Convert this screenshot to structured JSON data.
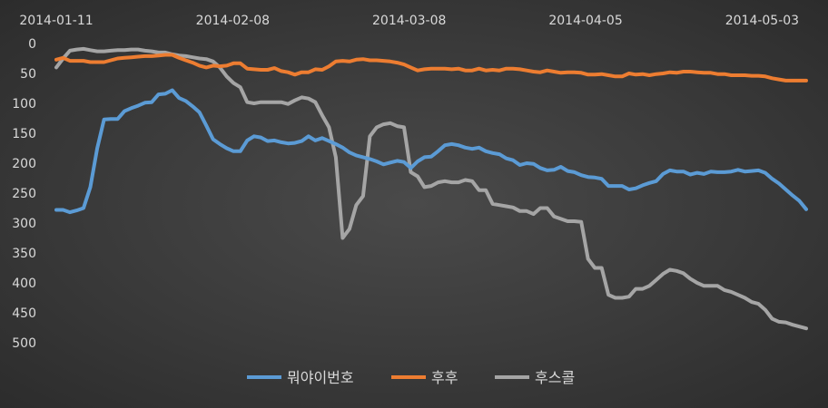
{
  "chart_data": {
    "type": "line",
    "x_tick_labels": [
      "2014-01-11",
      "2014-02-08",
      "2014-03-08",
      "2014-04-05",
      "2014-05-03"
    ],
    "y_tick_labels": [
      "0",
      "50",
      "100",
      "150",
      "200",
      "250",
      "300",
      "350",
      "400",
      "450",
      "500"
    ],
    "ylim": [
      0,
      500
    ],
    "y_axis_reversed": true,
    "grid": false,
    "legend_position": "bottom",
    "x_start": "2014-01-11",
    "x_end": "2014-05-10",
    "series": [
      {
        "name": "뭐야이번호",
        "color": "#5b9bd5",
        "values": [
          278,
          278,
          282,
          279,
          275,
          240,
          175,
          127,
          126,
          126,
          113,
          108,
          104,
          99,
          98,
          85,
          84,
          78,
          91,
          96,
          105,
          115,
          137,
          160,
          168,
          175,
          180,
          180,
          162,
          155,
          157,
          163,
          162,
          165,
          167,
          166,
          163,
          155,
          162,
          158,
          163,
          168,
          174,
          182,
          187,
          190,
          193,
          197,
          202,
          199,
          196,
          198,
          208,
          197,
          190,
          189,
          180,
          170,
          168,
          170,
          174,
          176,
          174,
          180,
          183,
          185,
          192,
          195,
          203,
          200,
          201,
          208,
          212,
          211,
          206,
          213,
          215,
          220,
          223,
          224,
          226,
          238,
          238,
          238,
          244,
          242,
          237,
          233,
          230,
          218,
          212,
          214,
          214,
          219,
          216,
          218,
          214,
          215,
          215,
          214,
          211,
          214,
          213,
          212,
          216,
          226,
          234,
          244,
          254,
          263,
          277
        ]
      },
      {
        "name": "후후",
        "color": "#ed7d31",
        "values": [
          27,
          24,
          29,
          29,
          29,
          31,
          31,
          31,
          28,
          25,
          24,
          23,
          22,
          21,
          21,
          20,
          19,
          19,
          24,
          28,
          32,
          37,
          40,
          37,
          38,
          37,
          33,
          33,
          42,
          43,
          44,
          44,
          41,
          46,
          48,
          52,
          48,
          48,
          43,
          44,
          38,
          30,
          29,
          30,
          27,
          26,
          28,
          28,
          29,
          30,
          32,
          35,
          40,
          45,
          43,
          42,
          42,
          42,
          43,
          42,
          45,
          45,
          42,
          45,
          44,
          45,
          42,
          42,
          43,
          45,
          47,
          48,
          45,
          47,
          49,
          48,
          48,
          49,
          52,
          52,
          51,
          53,
          55,
          55,
          50,
          52,
          51,
          53,
          51,
          50,
          48,
          49,
          47,
          47,
          48,
          49,
          49,
          51,
          51,
          53,
          53,
          53,
          54,
          54,
          55,
          58,
          60,
          62,
          62,
          62,
          62
        ]
      },
      {
        "name": "후스콜",
        "color": "#a5a5a5",
        "values": [
          40,
          25,
          12,
          10,
          9,
          11,
          13,
          13,
          12,
          11,
          11,
          10,
          10,
          12,
          13,
          15,
          15,
          18,
          20,
          21,
          23,
          25,
          26,
          30,
          40,
          55,
          66,
          73,
          98,
          100,
          98,
          98,
          98,
          98,
          101,
          95,
          90,
          92,
          98,
          120,
          140,
          190,
          325,
          310,
          270,
          255,
          155,
          140,
          135,
          133,
          138,
          140,
          215,
          222,
          240,
          238,
          232,
          230,
          232,
          232,
          228,
          230,
          245,
          245,
          268,
          270,
          272,
          274,
          280,
          280,
          285,
          275,
          275,
          289,
          293,
          297,
          297,
          298,
          360,
          375,
          375,
          420,
          425,
          425,
          423,
          410,
          410,
          405,
          395,
          385,
          378,
          380,
          384,
          393,
          400,
          405,
          405,
          405,
          412,
          415,
          420,
          425,
          432,
          435,
          445,
          460,
          465,
          466,
          470,
          473,
          476
        ]
      }
    ]
  }
}
